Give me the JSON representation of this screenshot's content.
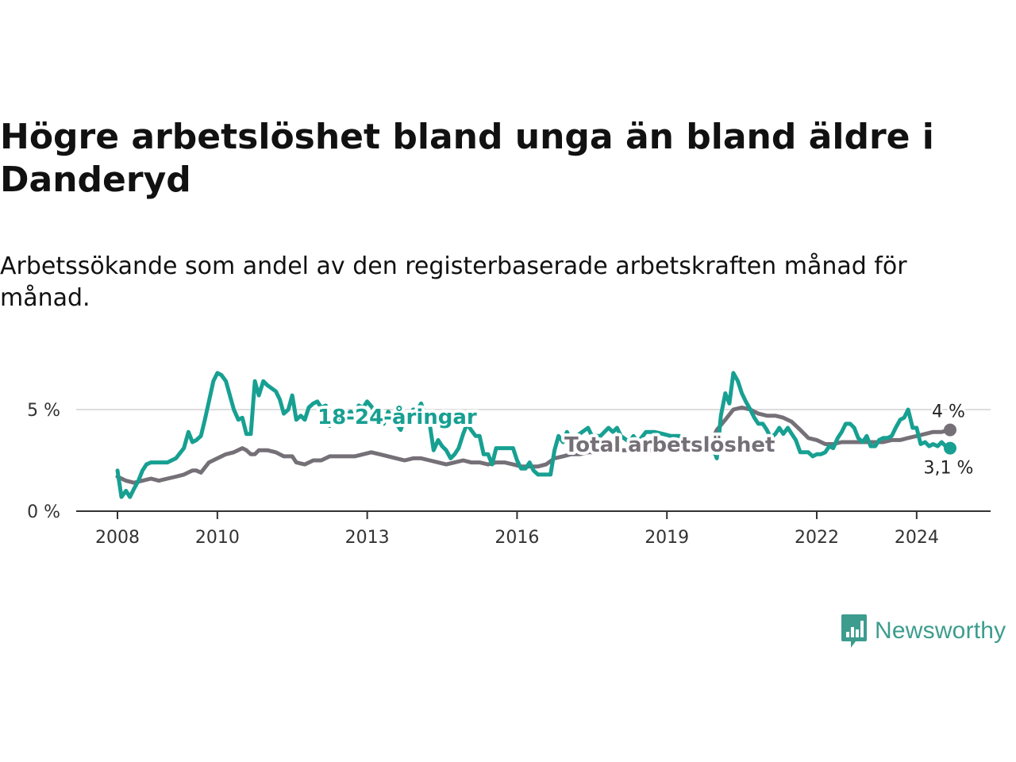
{
  "title": "Högre arbetslöshet bland unga än bland äldre i Danderyd",
  "subtitle": "Arbetssökande som andel av den registerbaserade arbetskraften månad för månad.",
  "brand": {
    "name": "Newsworthy",
    "icon": "newsworthy-logo-icon"
  },
  "colors": {
    "youth": "#17a092",
    "total": "#757078",
    "grid": "#dddddd",
    "axis": "#333333"
  },
  "chart_data": {
    "type": "line",
    "title": "Högre arbetslöshet bland unga än bland äldre i Danderyd",
    "xlabel": "",
    "ylabel": "",
    "xlim": [
      2007.8,
      2025.5
    ],
    "ylim": [
      0,
      7
    ],
    "grid": true,
    "x_ticks": [
      {
        "value": 2008,
        "label": "2008"
      },
      {
        "value": 2010,
        "label": "2010"
      },
      {
        "value": 2013,
        "label": "2013"
      },
      {
        "value": 2016,
        "label": "2016"
      },
      {
        "value": 2019,
        "label": "2019"
      },
      {
        "value": 2022,
        "label": "2022"
      },
      {
        "value": 2024,
        "label": "2024"
      }
    ],
    "y_ticks": [
      {
        "value": 0,
        "label": "0 %"
      },
      {
        "value": 5,
        "label": "5 %"
      }
    ],
    "series": [
      {
        "name": "18-24-åringar",
        "label": "18-24-åringar",
        "end_label": "3,1 %",
        "points": [
          [
            2008.0,
            2.0
          ],
          [
            2008.08,
            0.7
          ],
          [
            2008.17,
            1.0
          ],
          [
            2008.25,
            0.7
          ],
          [
            2008.33,
            1.1
          ],
          [
            2008.42,
            1.5
          ],
          [
            2008.5,
            2.0
          ],
          [
            2008.58,
            2.3
          ],
          [
            2008.67,
            2.4
          ],
          [
            2008.83,
            2.4
          ],
          [
            2009.0,
            2.4
          ],
          [
            2009.17,
            2.6
          ],
          [
            2009.33,
            3.1
          ],
          [
            2009.42,
            3.9
          ],
          [
            2009.5,
            3.4
          ],
          [
            2009.58,
            3.5
          ],
          [
            2009.67,
            3.7
          ],
          [
            2009.75,
            4.5
          ],
          [
            2009.83,
            5.4
          ],
          [
            2009.92,
            6.4
          ],
          [
            2010.0,
            6.8
          ],
          [
            2010.08,
            6.7
          ],
          [
            2010.17,
            6.4
          ],
          [
            2010.25,
            5.7
          ],
          [
            2010.33,
            5.0
          ],
          [
            2010.42,
            4.5
          ],
          [
            2010.5,
            4.6
          ],
          [
            2010.58,
            3.8
          ],
          [
            2010.67,
            3.8
          ],
          [
            2010.75,
            6.4
          ],
          [
            2010.83,
            5.7
          ],
          [
            2010.92,
            6.4
          ],
          [
            2011.0,
            6.2
          ],
          [
            2011.17,
            5.9
          ],
          [
            2011.25,
            5.5
          ],
          [
            2011.33,
            4.8
          ],
          [
            2011.42,
            5.0
          ],
          [
            2011.5,
            5.7
          ],
          [
            2011.58,
            4.5
          ],
          [
            2011.67,
            4.7
          ],
          [
            2011.75,
            4.5
          ],
          [
            2011.83,
            5.1
          ],
          [
            2011.92,
            5.3
          ],
          [
            2012.0,
            5.4
          ],
          [
            2012.08,
            5.1
          ],
          [
            2012.17,
            5.2
          ],
          [
            2012.25,
            4.2
          ],
          [
            2012.33,
            4.6
          ],
          [
            2012.42,
            4.3
          ],
          [
            2012.5,
            4.6
          ],
          [
            2012.67,
            4.9
          ],
          [
            2012.75,
            4.6
          ],
          [
            2012.83,
            5.2
          ],
          [
            2012.92,
            5.1
          ],
          [
            2013.0,
            5.4
          ],
          [
            2013.17,
            4.9
          ],
          [
            2013.33,
            4.3
          ],
          [
            2013.42,
            4.9
          ],
          [
            2013.5,
            4.6
          ],
          [
            2013.58,
            4.3
          ],
          [
            2013.67,
            4.0
          ],
          [
            2013.75,
            4.6
          ],
          [
            2013.83,
            4.4
          ],
          [
            2013.92,
            5.0
          ],
          [
            2014.0,
            5.0
          ],
          [
            2014.08,
            5.3
          ],
          [
            2014.17,
            4.6
          ],
          [
            2014.25,
            4.3
          ],
          [
            2014.33,
            3.0
          ],
          [
            2014.42,
            3.5
          ],
          [
            2014.5,
            3.2
          ],
          [
            2014.58,
            3.0
          ],
          [
            2014.67,
            2.6
          ],
          [
            2014.75,
            2.8
          ],
          [
            2014.83,
            3.1
          ],
          [
            2014.92,
            3.8
          ],
          [
            2015.0,
            4.3
          ],
          [
            2015.08,
            4.0
          ],
          [
            2015.17,
            3.7
          ],
          [
            2015.25,
            3.7
          ],
          [
            2015.33,
            2.8
          ],
          [
            2015.42,
            2.8
          ],
          [
            2015.5,
            2.3
          ],
          [
            2015.58,
            3.1
          ],
          [
            2015.67,
            3.1
          ],
          [
            2015.75,
            3.1
          ],
          [
            2015.83,
            3.1
          ],
          [
            2015.92,
            3.1
          ],
          [
            2016.0,
            2.5
          ],
          [
            2016.08,
            2.1
          ],
          [
            2016.17,
            2.1
          ],
          [
            2016.25,
            2.4
          ],
          [
            2016.33,
            2.0
          ],
          [
            2016.42,
            1.8
          ],
          [
            2016.5,
            1.8
          ],
          [
            2016.67,
            1.8
          ],
          [
            2016.75,
            3.0
          ],
          [
            2016.83,
            3.7
          ],
          [
            2016.92,
            3.4
          ],
          [
            2017.0,
            3.9
          ],
          [
            2017.08,
            3.4
          ],
          [
            2017.25,
            3.8
          ],
          [
            2017.42,
            4.1
          ],
          [
            2017.5,
            3.7
          ],
          [
            2017.67,
            3.7
          ],
          [
            2017.83,
            4.1
          ],
          [
            2017.92,
            3.9
          ],
          [
            2018.0,
            4.1
          ],
          [
            2018.08,
            3.7
          ],
          [
            2018.25,
            3.4
          ],
          [
            2018.33,
            3.7
          ],
          [
            2018.42,
            3.4
          ],
          [
            2018.58,
            3.9
          ],
          [
            2018.75,
            3.9
          ],
          [
            2018.92,
            3.8
          ],
          [
            2019.08,
            3.7
          ],
          [
            2019.25,
            3.7
          ],
          [
            2019.42,
            3.4
          ],
          [
            2019.58,
            3.5
          ],
          [
            2019.75,
            3.4
          ],
          [
            2019.92,
            3.1
          ],
          [
            2020.0,
            2.6
          ],
          [
            2020.08,
            4.7
          ],
          [
            2020.17,
            5.8
          ],
          [
            2020.25,
            5.3
          ],
          [
            2020.33,
            6.8
          ],
          [
            2020.42,
            6.4
          ],
          [
            2020.5,
            5.8
          ],
          [
            2020.58,
            5.4
          ],
          [
            2020.67,
            5.0
          ],
          [
            2020.75,
            4.6
          ],
          [
            2020.83,
            4.3
          ],
          [
            2020.92,
            4.3
          ],
          [
            2021.0,
            4.0
          ],
          [
            2021.08,
            3.6
          ],
          [
            2021.17,
            3.8
          ],
          [
            2021.25,
            4.1
          ],
          [
            2021.33,
            3.8
          ],
          [
            2021.42,
            4.1
          ],
          [
            2021.5,
            3.8
          ],
          [
            2021.58,
            3.5
          ],
          [
            2021.67,
            2.9
          ],
          [
            2021.75,
            2.9
          ],
          [
            2021.83,
            2.9
          ],
          [
            2021.92,
            2.7
          ],
          [
            2022.0,
            2.8
          ],
          [
            2022.08,
            2.8
          ],
          [
            2022.17,
            2.9
          ],
          [
            2022.25,
            3.2
          ],
          [
            2022.33,
            3.1
          ],
          [
            2022.42,
            3.6
          ],
          [
            2022.5,
            3.9
          ],
          [
            2022.58,
            4.3
          ],
          [
            2022.67,
            4.3
          ],
          [
            2022.75,
            4.1
          ],
          [
            2022.83,
            3.6
          ],
          [
            2022.92,
            3.4
          ],
          [
            2023.0,
            3.7
          ],
          [
            2023.08,
            3.2
          ],
          [
            2023.17,
            3.2
          ],
          [
            2023.25,
            3.5
          ],
          [
            2023.33,
            3.6
          ],
          [
            2023.42,
            3.6
          ],
          [
            2023.5,
            3.7
          ],
          [
            2023.58,
            4.1
          ],
          [
            2023.67,
            4.5
          ],
          [
            2023.75,
            4.6
          ],
          [
            2023.83,
            5.0
          ],
          [
            2023.92,
            4.1
          ],
          [
            2024.0,
            4.1
          ],
          [
            2024.08,
            3.3
          ],
          [
            2024.17,
            3.4
          ],
          [
            2024.25,
            3.2
          ],
          [
            2024.33,
            3.3
          ],
          [
            2024.42,
            3.2
          ],
          [
            2024.5,
            3.4
          ],
          [
            2024.58,
            3.2
          ],
          [
            2024.67,
            3.1
          ]
        ]
      },
      {
        "name": "Total arbetslöshet",
        "label": "Total arbetslöshet",
        "end_label": "4 %",
        "points": [
          [
            2008.0,
            1.7
          ],
          [
            2008.17,
            1.5
          ],
          [
            2008.33,
            1.4
          ],
          [
            2008.5,
            1.5
          ],
          [
            2008.67,
            1.6
          ],
          [
            2008.83,
            1.5
          ],
          [
            2009.0,
            1.6
          ],
          [
            2009.17,
            1.7
          ],
          [
            2009.33,
            1.8
          ],
          [
            2009.5,
            2.0
          ],
          [
            2009.58,
            2.0
          ],
          [
            2009.67,
            1.9
          ],
          [
            2009.83,
            2.4
          ],
          [
            2010.0,
            2.6
          ],
          [
            2010.17,
            2.8
          ],
          [
            2010.33,
            2.9
          ],
          [
            2010.5,
            3.1
          ],
          [
            2010.58,
            3.0
          ],
          [
            2010.67,
            2.8
          ],
          [
            2010.75,
            2.8
          ],
          [
            2010.83,
            3.0
          ],
          [
            2011.0,
            3.0
          ],
          [
            2011.17,
            2.9
          ],
          [
            2011.33,
            2.7
          ],
          [
            2011.5,
            2.7
          ],
          [
            2011.58,
            2.4
          ],
          [
            2011.75,
            2.3
          ],
          [
            2011.92,
            2.5
          ],
          [
            2012.08,
            2.5
          ],
          [
            2012.25,
            2.7
          ],
          [
            2012.42,
            2.7
          ],
          [
            2012.58,
            2.7
          ],
          [
            2012.75,
            2.7
          ],
          [
            2012.92,
            2.8
          ],
          [
            2013.08,
            2.9
          ],
          [
            2013.25,
            2.8
          ],
          [
            2013.42,
            2.7
          ],
          [
            2013.58,
            2.6
          ],
          [
            2013.75,
            2.5
          ],
          [
            2013.92,
            2.6
          ],
          [
            2014.08,
            2.6
          ],
          [
            2014.25,
            2.5
          ],
          [
            2014.42,
            2.4
          ],
          [
            2014.58,
            2.3
          ],
          [
            2014.75,
            2.4
          ],
          [
            2014.92,
            2.5
          ],
          [
            2015.08,
            2.4
          ],
          [
            2015.25,
            2.4
          ],
          [
            2015.42,
            2.3
          ],
          [
            2015.58,
            2.4
          ],
          [
            2015.75,
            2.4
          ],
          [
            2015.92,
            2.3
          ],
          [
            2016.08,
            2.2
          ],
          [
            2016.25,
            2.2
          ],
          [
            2016.42,
            2.2
          ],
          [
            2016.58,
            2.3
          ],
          [
            2016.75,
            2.6
          ],
          [
            2016.92,
            2.7
          ],
          [
            2017.08,
            2.8
          ],
          [
            2017.25,
            2.8
          ],
          [
            2017.42,
            2.9
          ],
          [
            2017.58,
            2.9
          ],
          [
            2017.75,
            2.9
          ],
          [
            2017.92,
            2.9
          ],
          [
            2018.08,
            3.0
          ],
          [
            2018.25,
            3.0
          ],
          [
            2018.42,
            2.9
          ],
          [
            2018.58,
            3.0
          ],
          [
            2018.75,
            3.0
          ],
          [
            2018.92,
            3.0
          ],
          [
            2019.08,
            3.0
          ],
          [
            2019.25,
            3.1
          ],
          [
            2019.42,
            3.1
          ],
          [
            2019.58,
            3.2
          ],
          [
            2019.75,
            3.3
          ],
          [
            2019.92,
            3.6
          ],
          [
            2020.0,
            4.0
          ],
          [
            2020.17,
            4.5
          ],
          [
            2020.33,
            5.0
          ],
          [
            2020.5,
            5.1
          ],
          [
            2020.67,
            5.0
          ],
          [
            2020.83,
            4.8
          ],
          [
            2021.0,
            4.7
          ],
          [
            2021.17,
            4.7
          ],
          [
            2021.33,
            4.6
          ],
          [
            2021.5,
            4.4
          ],
          [
            2021.67,
            4.0
          ],
          [
            2021.83,
            3.6
          ],
          [
            2022.0,
            3.5
          ],
          [
            2022.17,
            3.3
          ],
          [
            2022.33,
            3.3
          ],
          [
            2022.5,
            3.4
          ],
          [
            2022.67,
            3.4
          ],
          [
            2022.83,
            3.4
          ],
          [
            2023.0,
            3.4
          ],
          [
            2023.17,
            3.4
          ],
          [
            2023.33,
            3.4
          ],
          [
            2023.5,
            3.5
          ],
          [
            2023.67,
            3.5
          ],
          [
            2023.83,
            3.6
          ],
          [
            2024.0,
            3.7
          ],
          [
            2024.17,
            3.8
          ],
          [
            2024.33,
            3.9
          ],
          [
            2024.5,
            3.9
          ],
          [
            2024.67,
            4.0
          ]
        ]
      }
    ]
  }
}
